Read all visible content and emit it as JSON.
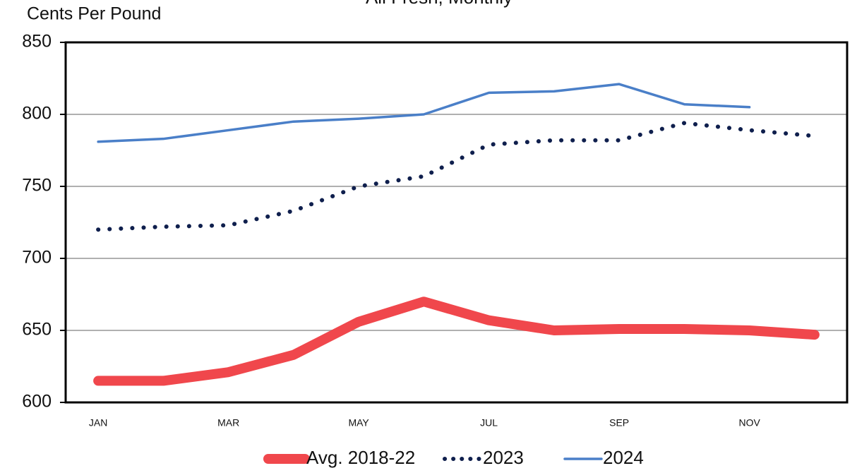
{
  "chart_data": {
    "type": "line",
    "title": "All Fresh, Monthly",
    "y_label": "Cents Per Pound",
    "categories": [
      "JAN",
      null,
      "MAR",
      null,
      "MAY",
      null,
      "JUL",
      null,
      "SEP",
      null,
      "NOV",
      null
    ],
    "series": [
      {
        "name": "Avg. 2018-22",
        "color": "#f0474c",
        "style": "solid",
        "width": 14,
        "values": [
          615,
          615,
          621,
          633,
          656,
          670,
          657,
          650,
          651,
          651,
          650,
          647
        ]
      },
      {
        "name": "2023",
        "color": "#0f1f4d",
        "style": "dotted",
        "width": 4,
        "values": [
          720,
          722,
          723,
          733,
          750,
          757,
          779,
          782,
          782,
          794,
          789,
          785
        ]
      },
      {
        "name": "2024",
        "color": "#4a7fc8",
        "style": "solid",
        "width": 3.5,
        "values": [
          781,
          783,
          789,
          795,
          797,
          800,
          815,
          816,
          821,
          807,
          805,
          null
        ]
      }
    ],
    "ylim": [
      600,
      850
    ],
    "yticks": [
      600,
      650,
      700,
      750,
      800,
      850
    ],
    "grid": true,
    "legend": "bottom"
  }
}
